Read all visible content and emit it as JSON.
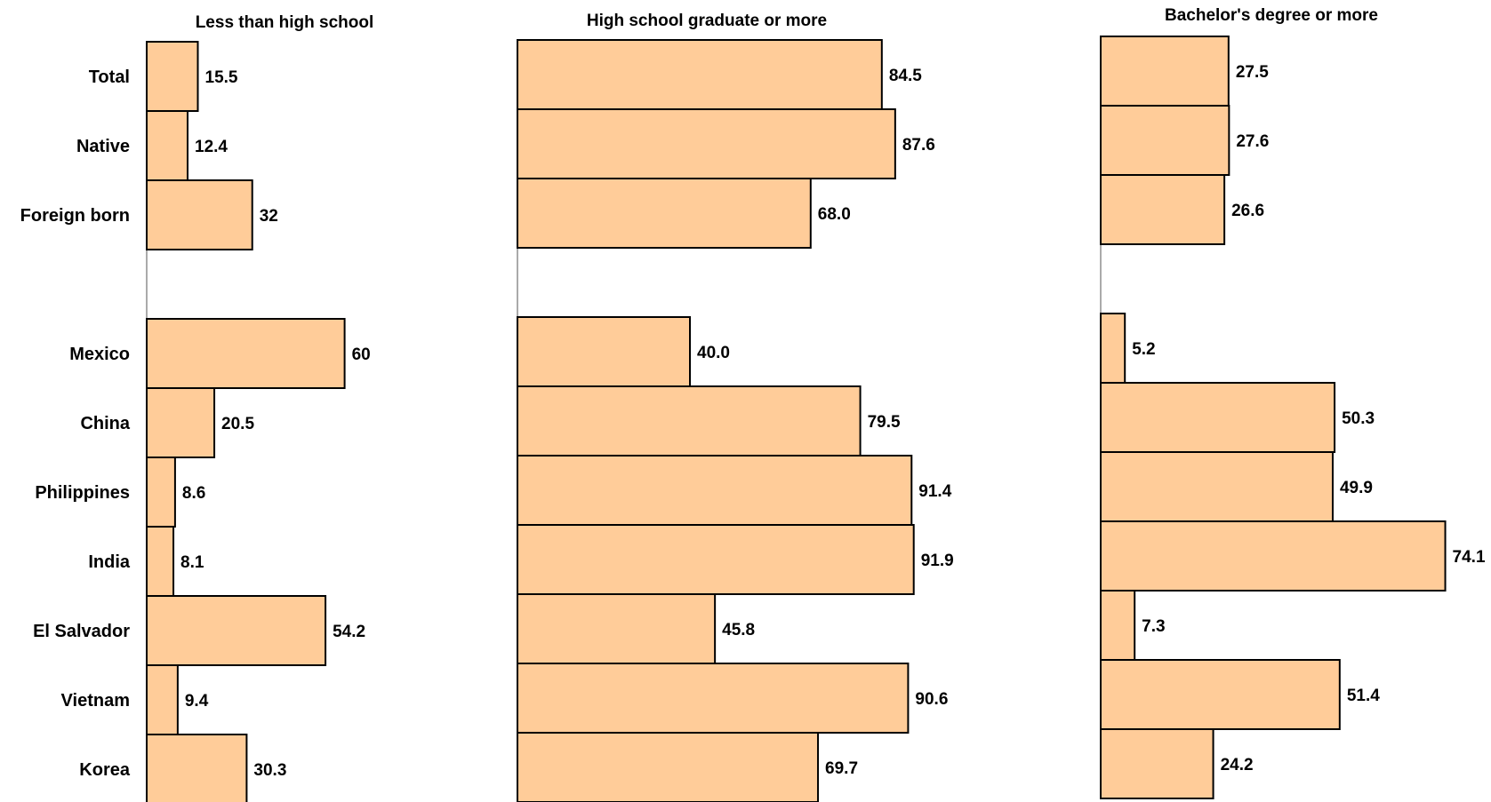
{
  "chart_data": {
    "type": "bar",
    "orientation": "horizontal",
    "bar_color": "#FFCC99",
    "border_color": "#000000",
    "categories": [
      "Total",
      "Native",
      "Foreign born",
      "",
      "Mexico",
      "China",
      "Philippines",
      "India",
      "El Salvador",
      "Vietnam",
      "Korea"
    ],
    "series": [
      {
        "name": "Less than high school",
        "values": [
          15.5,
          12.4,
          32,
          null,
          60,
          20.5,
          8.6,
          8.1,
          54.2,
          9.4,
          30.3
        ],
        "labels": [
          "15.5",
          "12.4",
          "32",
          "",
          "60",
          "20.5",
          "8.6",
          "8.1",
          "54.2",
          "9.4",
          "30.3"
        ]
      },
      {
        "name": "High school graduate or more",
        "values": [
          84.5,
          87.6,
          68.0,
          null,
          40.0,
          79.5,
          91.4,
          91.9,
          45.8,
          90.6,
          69.7
        ],
        "labels": [
          "84.5",
          "87.6",
          "68.0",
          "",
          "40.0",
          "79.5",
          "91.4",
          "91.9",
          "45.8",
          "90.6",
          "69.7"
        ]
      },
      {
        "name": "Bachelor's degree or more",
        "values": [
          27.5,
          27.6,
          26.6,
          null,
          5.2,
          50.3,
          49.9,
          74.1,
          7.3,
          51.4,
          24.2
        ],
        "labels": [
          "27.5",
          "27.6",
          "26.6",
          "",
          "5.2",
          "50.3",
          "49.9",
          "74.1",
          "7.3",
          "51.4",
          "24.2"
        ]
      }
    ]
  }
}
